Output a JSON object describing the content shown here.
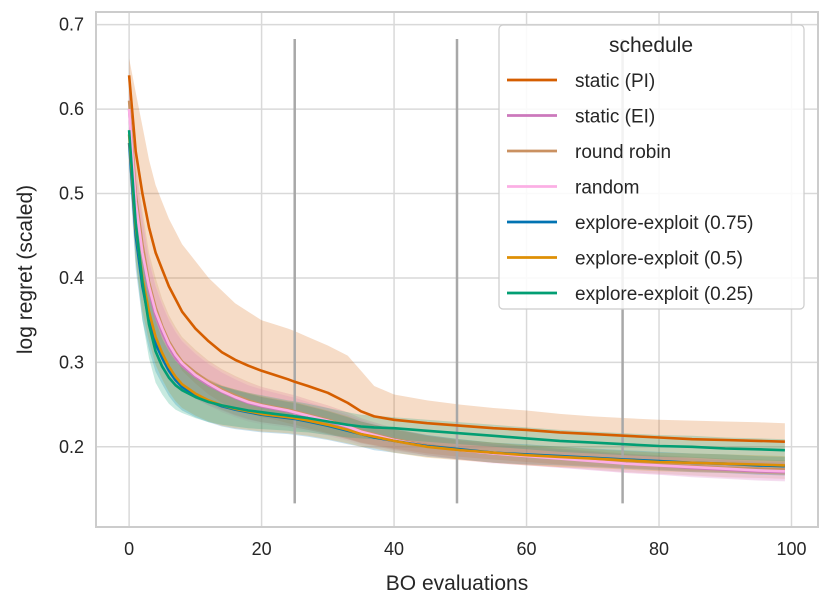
{
  "chart_data": {
    "type": "line",
    "title": "",
    "xlabel": "BO evaluations",
    "ylabel": "log regret (scaled)",
    "xlim": [
      -5,
      104
    ],
    "ylim": [
      0.105,
      0.715
    ],
    "xticks": [
      0,
      20,
      40,
      60,
      80,
      100
    ],
    "yticks": [
      0.2,
      0.3,
      0.4,
      0.5,
      0.6,
      0.7
    ],
    "xtick_labels": [
      "0",
      "20",
      "40",
      "60",
      "80",
      "100"
    ],
    "ytick_labels": [
      "0.2",
      "0.3",
      "0.4",
      "0.5",
      "0.6",
      "0.7"
    ],
    "grid": true,
    "legend": {
      "title": "schedule",
      "placement": "top-right"
    },
    "vertical_markers": [
      {
        "x": 25,
        "y_low": 0.133,
        "y_high": 0.683
      },
      {
        "x": 49.5,
        "y_low": 0.133,
        "y_high": 0.683
      },
      {
        "x": 74.5,
        "y_low": 0.133,
        "y_high": 0.683
      }
    ],
    "x": [
      0,
      1,
      2,
      3,
      4,
      5,
      6,
      7,
      8,
      10,
      12,
      14,
      16,
      18,
      20,
      22,
      24,
      25,
      27,
      30,
      33,
      35,
      37,
      40,
      45,
      50,
      55,
      60,
      65,
      70,
      75,
      80,
      85,
      90,
      95,
      99
    ],
    "series": [
      {
        "name": "static (PI)",
        "color": "#d55e00",
        "values": [
          0.64,
          0.55,
          0.5,
          0.46,
          0.43,
          0.41,
          0.39,
          0.375,
          0.36,
          0.34,
          0.325,
          0.312,
          0.303,
          0.296,
          0.29,
          0.285,
          0.28,
          0.277,
          0.272,
          0.264,
          0.252,
          0.242,
          0.236,
          0.232,
          0.228,
          0.225,
          0.222,
          0.22,
          0.217,
          0.215,
          0.213,
          0.211,
          0.209,
          0.208,
          0.207,
          0.206
        ],
        "band_upper": [
          0.66,
          0.62,
          0.58,
          0.54,
          0.51,
          0.49,
          0.47,
          0.455,
          0.44,
          0.42,
          0.4,
          0.385,
          0.37,
          0.36,
          0.35,
          0.345,
          0.34,
          0.337,
          0.33,
          0.32,
          0.308,
          0.29,
          0.272,
          0.262,
          0.255,
          0.25,
          0.246,
          0.243,
          0.239,
          0.236,
          0.234,
          0.232,
          0.231,
          0.23,
          0.229,
          0.228
        ],
        "band_lower": [
          0.6,
          0.48,
          0.43,
          0.39,
          0.36,
          0.34,
          0.32,
          0.305,
          0.29,
          0.275,
          0.262,
          0.252,
          0.245,
          0.24,
          0.235,
          0.232,
          0.228,
          0.226,
          0.222,
          0.216,
          0.21,
          0.205,
          0.202,
          0.198,
          0.192,
          0.188,
          0.185,
          0.182,
          0.179,
          0.177,
          0.175,
          0.173,
          0.171,
          0.17,
          0.168,
          0.167
        ]
      },
      {
        "name": "static (EI)",
        "color": "#cc78bc",
        "values": [
          0.6,
          0.49,
          0.43,
          0.385,
          0.355,
          0.335,
          0.318,
          0.305,
          0.296,
          0.283,
          0.273,
          0.265,
          0.258,
          0.252,
          0.248,
          0.245,
          0.242,
          0.24,
          0.236,
          0.23,
          0.223,
          0.218,
          0.214,
          0.208,
          0.201,
          0.196,
          0.192,
          0.189,
          0.186,
          0.183,
          0.18,
          0.178,
          0.175,
          0.173,
          0.171,
          0.17
        ],
        "band_upper": [
          0.63,
          0.53,
          0.47,
          0.42,
          0.39,
          0.368,
          0.35,
          0.336,
          0.325,
          0.31,
          0.298,
          0.288,
          0.28,
          0.273,
          0.268,
          0.264,
          0.26,
          0.258,
          0.253,
          0.246,
          0.238,
          0.232,
          0.227,
          0.22,
          0.213,
          0.207,
          0.203,
          0.2,
          0.197,
          0.194,
          0.191,
          0.189,
          0.186,
          0.184,
          0.182,
          0.181
        ],
        "band_lower": [
          0.57,
          0.45,
          0.39,
          0.35,
          0.322,
          0.303,
          0.288,
          0.276,
          0.268,
          0.257,
          0.249,
          0.243,
          0.237,
          0.232,
          0.229,
          0.227,
          0.225,
          0.223,
          0.22,
          0.215,
          0.209,
          0.205,
          0.202,
          0.197,
          0.19,
          0.185,
          0.181,
          0.178,
          0.175,
          0.172,
          0.169,
          0.167,
          0.164,
          0.162,
          0.16,
          0.159
        ]
      },
      {
        "name": "round robin",
        "color": "#ca9161",
        "values": [
          0.61,
          0.5,
          0.44,
          0.395,
          0.365,
          0.343,
          0.325,
          0.312,
          0.301,
          0.288,
          0.277,
          0.268,
          0.261,
          0.255,
          0.25,
          0.247,
          0.244,
          0.242,
          0.238,
          0.232,
          0.225,
          0.219,
          0.215,
          0.209,
          0.202,
          0.197,
          0.193,
          0.19,
          0.187,
          0.184,
          0.181,
          0.179,
          0.177,
          0.175,
          0.174,
          0.173
        ],
        "band_upper": [
          0.64,
          0.54,
          0.48,
          0.43,
          0.4,
          0.375,
          0.356,
          0.342,
          0.33,
          0.315,
          0.302,
          0.292,
          0.284,
          0.277,
          0.271,
          0.267,
          0.263,
          0.261,
          0.256,
          0.249,
          0.241,
          0.234,
          0.229,
          0.222,
          0.214,
          0.209,
          0.205,
          0.201,
          0.198,
          0.195,
          0.192,
          0.19,
          0.188,
          0.186,
          0.185,
          0.184
        ],
        "band_lower": [
          0.58,
          0.46,
          0.4,
          0.36,
          0.33,
          0.311,
          0.294,
          0.282,
          0.272,
          0.261,
          0.252,
          0.244,
          0.238,
          0.233,
          0.229,
          0.227,
          0.225,
          0.223,
          0.22,
          0.215,
          0.209,
          0.204,
          0.201,
          0.196,
          0.19,
          0.185,
          0.181,
          0.179,
          0.176,
          0.173,
          0.17,
          0.168,
          0.166,
          0.164,
          0.163,
          0.162
        ]
      },
      {
        "name": "random",
        "color": "#fbafe4",
        "values": [
          0.6,
          0.49,
          0.43,
          0.39,
          0.36,
          0.34,
          0.322,
          0.309,
          0.299,
          0.285,
          0.275,
          0.266,
          0.259,
          0.253,
          0.249,
          0.246,
          0.243,
          0.241,
          0.237,
          0.231,
          0.224,
          0.218,
          0.214,
          0.208,
          0.201,
          0.196,
          0.192,
          0.189,
          0.186,
          0.183,
          0.18,
          0.178,
          0.176,
          0.174,
          0.172,
          0.171
        ],
        "band_upper": [
          0.63,
          0.53,
          0.47,
          0.425,
          0.393,
          0.372,
          0.353,
          0.339,
          0.328,
          0.313,
          0.301,
          0.291,
          0.283,
          0.276,
          0.271,
          0.267,
          0.263,
          0.261,
          0.256,
          0.249,
          0.241,
          0.234,
          0.229,
          0.222,
          0.214,
          0.208,
          0.204,
          0.2,
          0.197,
          0.194,
          0.191,
          0.189,
          0.187,
          0.185,
          0.183,
          0.182
        ],
        "band_lower": [
          0.57,
          0.45,
          0.39,
          0.355,
          0.327,
          0.308,
          0.291,
          0.279,
          0.27,
          0.257,
          0.249,
          0.241,
          0.235,
          0.23,
          0.227,
          0.225,
          0.223,
          0.221,
          0.218,
          0.213,
          0.207,
          0.202,
          0.199,
          0.194,
          0.188,
          0.184,
          0.18,
          0.178,
          0.175,
          0.172,
          0.169,
          0.167,
          0.165,
          0.163,
          0.161,
          0.16
        ]
      },
      {
        "name": "explore-exploit (0.75)",
        "color": "#0173b2",
        "values": [
          0.56,
          0.45,
          0.39,
          0.35,
          0.322,
          0.305,
          0.29,
          0.279,
          0.271,
          0.261,
          0.254,
          0.248,
          0.244,
          0.241,
          0.238,
          0.236,
          0.234,
          0.233,
          0.23,
          0.225,
          0.219,
          0.215,
          0.211,
          0.207,
          0.201,
          0.197,
          0.193,
          0.191,
          0.189,
          0.187,
          0.185,
          0.183,
          0.181,
          0.18,
          0.178,
          0.177
        ],
        "band_upper": [
          0.59,
          0.49,
          0.43,
          0.385,
          0.355,
          0.336,
          0.32,
          0.308,
          0.299,
          0.287,
          0.279,
          0.272,
          0.267,
          0.263,
          0.259,
          0.256,
          0.253,
          0.252,
          0.248,
          0.242,
          0.235,
          0.23,
          0.226,
          0.221,
          0.214,
          0.209,
          0.205,
          0.203,
          0.2,
          0.198,
          0.196,
          0.194,
          0.192,
          0.191,
          0.189,
          0.188
        ],
        "band_lower": [
          0.53,
          0.41,
          0.35,
          0.315,
          0.289,
          0.274,
          0.26,
          0.25,
          0.243,
          0.235,
          0.229,
          0.224,
          0.221,
          0.219,
          0.217,
          0.216,
          0.215,
          0.214,
          0.212,
          0.208,
          0.203,
          0.2,
          0.196,
          0.193,
          0.188,
          0.185,
          0.181,
          0.179,
          0.178,
          0.176,
          0.174,
          0.172,
          0.17,
          0.169,
          0.167,
          0.166
        ]
      },
      {
        "name": "explore-exploit (0.5)",
        "color": "#de8f05",
        "values": [
          0.57,
          0.46,
          0.4,
          0.36,
          0.33,
          0.311,
          0.295,
          0.283,
          0.274,
          0.263,
          0.255,
          0.249,
          0.245,
          0.242,
          0.239,
          0.237,
          0.235,
          0.234,
          0.231,
          0.226,
          0.22,
          0.215,
          0.212,
          0.207,
          0.2,
          0.196,
          0.193,
          0.19,
          0.188,
          0.186,
          0.184,
          0.182,
          0.181,
          0.18,
          0.179,
          0.178
        ],
        "band_upper": [
          0.6,
          0.5,
          0.44,
          0.395,
          0.363,
          0.342,
          0.325,
          0.312,
          0.302,
          0.289,
          0.28,
          0.273,
          0.268,
          0.264,
          0.26,
          0.257,
          0.254,
          0.253,
          0.249,
          0.243,
          0.236,
          0.23,
          0.226,
          0.221,
          0.213,
          0.208,
          0.205,
          0.202,
          0.2,
          0.197,
          0.195,
          0.193,
          0.192,
          0.191,
          0.19,
          0.189
        ],
        "band_lower": [
          0.54,
          0.42,
          0.36,
          0.325,
          0.297,
          0.28,
          0.265,
          0.254,
          0.246,
          0.237,
          0.23,
          0.225,
          0.222,
          0.22,
          0.218,
          0.217,
          0.216,
          0.215,
          0.213,
          0.209,
          0.204,
          0.2,
          0.198,
          0.193,
          0.187,
          0.184,
          0.181,
          0.178,
          0.176,
          0.175,
          0.173,
          0.171,
          0.17,
          0.169,
          0.168,
          0.167
        ]
      },
      {
        "name": "explore-exploit (0.25)",
        "color": "#029e73",
        "values": [
          0.575,
          0.465,
          0.395,
          0.345,
          0.313,
          0.295,
          0.282,
          0.273,
          0.267,
          0.259,
          0.253,
          0.249,
          0.246,
          0.243,
          0.241,
          0.239,
          0.237,
          0.236,
          0.234,
          0.23,
          0.226,
          0.224,
          0.223,
          0.222,
          0.219,
          0.216,
          0.213,
          0.21,
          0.207,
          0.205,
          0.203,
          0.201,
          0.2,
          0.198,
          0.197,
          0.196
        ],
        "band_upper": [
          0.61,
          0.51,
          0.44,
          0.385,
          0.35,
          0.328,
          0.313,
          0.302,
          0.294,
          0.284,
          0.277,
          0.272,
          0.268,
          0.264,
          0.261,
          0.258,
          0.255,
          0.254,
          0.251,
          0.246,
          0.241,
          0.238,
          0.237,
          0.235,
          0.232,
          0.229,
          0.226,
          0.223,
          0.22,
          0.218,
          0.216,
          0.214,
          0.213,
          0.211,
          0.21,
          0.209
        ],
        "band_lower": [
          0.54,
          0.42,
          0.35,
          0.305,
          0.276,
          0.262,
          0.251,
          0.244,
          0.24,
          0.234,
          0.229,
          0.226,
          0.224,
          0.222,
          0.221,
          0.22,
          0.219,
          0.218,
          0.217,
          0.214,
          0.211,
          0.21,
          0.209,
          0.209,
          0.206,
          0.203,
          0.2,
          0.197,
          0.194,
          0.192,
          0.19,
          0.188,
          0.187,
          0.185,
          0.184,
          0.183
        ]
      }
    ]
  }
}
